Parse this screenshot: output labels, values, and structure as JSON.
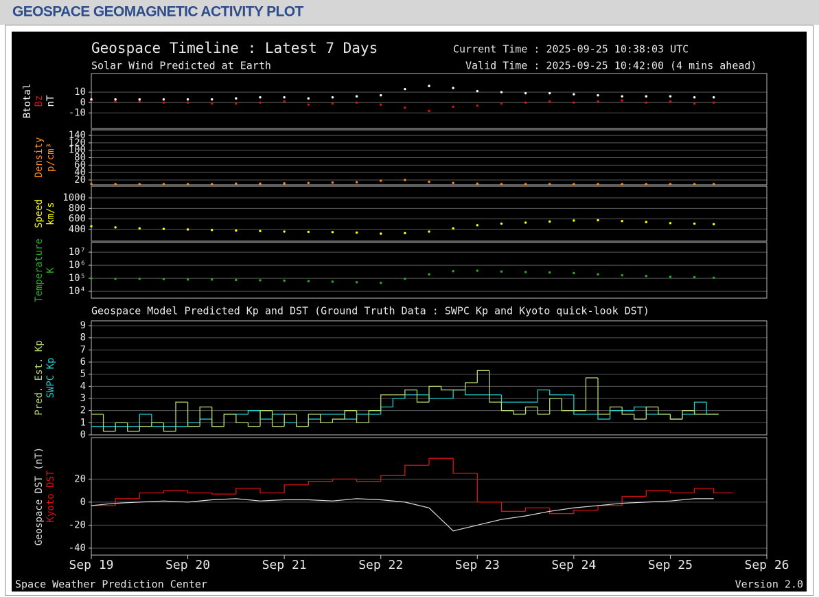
{
  "header": {
    "title": "GEOSPACE GEOMAGNETIC ACTIVITY PLOT"
  },
  "plot": {
    "title": "Geospace Timeline : Latest 7 Days",
    "current_time": "Current Time : 2025-09-25 10:38:03 UTC",
    "subtitle": "Solar Wind Predicted at Earth",
    "valid_time": "Valid Time : 2025-09-25 10:42:00 (4 mins ahead)",
    "model_title": "Geospace Model Predicted Kp and DST (Ground Truth Data : SWPC Kp and Kyoto quick-look DST)",
    "footer_left": "Space Weather Prediction Center",
    "footer_right": "Version 2.0"
  },
  "chart_data": [
    {
      "type": "scatter",
      "ylabel": "nT",
      "xlim": [
        0,
        7
      ],
      "ylim": [
        -25,
        28
      ],
      "yticks": [
        -10,
        0,
        10
      ],
      "grid": true,
      "x": [
        0,
        0.25,
        0.5,
        0.75,
        1,
        1.25,
        1.5,
        1.75,
        2,
        2.25,
        2.5,
        2.75,
        3,
        3.25,
        3.5,
        3.75,
        4,
        4.25,
        4.5,
        4.75,
        5,
        5.25,
        5.5,
        5.75,
        6,
        6.25,
        6.45
      ],
      "series": [
        {
          "name": "Btotal",
          "color": "#ffffff",
          "values": [
            3,
            3,
            3,
            3,
            3,
            3,
            4,
            5,
            5,
            4,
            5,
            6,
            7,
            13,
            16,
            14,
            11,
            10,
            9,
            9,
            8,
            7,
            6,
            6,
            6,
            5,
            5
          ]
        },
        {
          "name": "Bz",
          "color": "#e01010",
          "values": [
            2,
            1,
            1,
            0,
            0,
            -1,
            -1,
            0,
            1,
            -2,
            -1,
            0,
            -2,
            -5,
            -8,
            -4,
            -3,
            -1,
            0,
            1,
            0,
            1,
            2,
            0,
            1,
            -1,
            0
          ]
        }
      ]
    },
    {
      "type": "scatter",
      "ylabel": "p/cm³",
      "xlim": [
        0,
        7
      ],
      "ylim": [
        7,
        155
      ],
      "yticks": [
        20,
        40,
        60,
        80,
        100,
        120,
        140
      ],
      "grid": true,
      "x": [
        0,
        0.25,
        0.5,
        0.75,
        1,
        1.25,
        1.5,
        1.75,
        2,
        2.25,
        2.5,
        2.75,
        3,
        3.25,
        3.5,
        3.75,
        4,
        4.25,
        4.5,
        4.75,
        5,
        5.25,
        5.5,
        5.75,
        6,
        6.25,
        6.45
      ],
      "series": [
        {
          "name": "Density",
          "color": "#ff8c1a",
          "values": [
            9,
            9,
            9,
            9,
            9,
            9,
            10,
            10,
            11,
            12,
            13,
            14,
            18,
            20,
            15,
            12,
            10,
            9,
            9,
            9,
            9,
            9,
            9,
            9,
            9,
            9,
            9
          ]
        }
      ]
    },
    {
      "type": "scatter",
      "ylabel": "km/s",
      "xlim": [
        0,
        7
      ],
      "ylim": [
        178,
        1222
      ],
      "yticks": [
        400,
        600,
        800,
        1000
      ],
      "grid": true,
      "x": [
        0,
        0.25,
        0.5,
        0.75,
        1,
        1.25,
        1.5,
        1.75,
        2,
        2.25,
        2.5,
        2.75,
        3,
        3.25,
        3.5,
        3.75,
        4,
        4.25,
        4.5,
        4.75,
        5,
        5.25,
        5.5,
        5.75,
        6,
        6.25,
        6.45
      ],
      "series": [
        {
          "name": "Speed",
          "color": "#ffff00",
          "values": [
            460,
            440,
            420,
            410,
            400,
            390,
            380,
            370,
            360,
            355,
            350,
            340,
            320,
            330,
            360,
            420,
            480,
            510,
            530,
            550,
            570,
            575,
            560,
            540,
            520,
            510,
            500
          ]
        }
      ]
    },
    {
      "type": "scatter",
      "ylabel": "K",
      "yscale": "log",
      "xlim": [
        0,
        7
      ],
      "ylim": [
        3000,
        55000000
      ],
      "grid": true,
      "yticks": [
        {
          "value": 10000,
          "label": "10⁴"
        },
        {
          "value": 100000,
          "label": "10⁵"
        },
        {
          "value": 1000000,
          "label": "10⁶"
        },
        {
          "value": 10000000,
          "label": "10⁷"
        }
      ],
      "x": [
        0,
        0.25,
        0.5,
        0.75,
        1,
        1.25,
        1.5,
        1.75,
        2,
        2.25,
        2.5,
        2.75,
        3,
        3.25,
        3.5,
        3.75,
        4,
        4.25,
        4.5,
        4.75,
        5,
        5.25,
        5.5,
        5.75,
        6,
        6.25,
        6.45
      ],
      "series": [
        {
          "name": "Temperature",
          "color": "#22b022",
          "values": [
            100000,
            90000,
            90000,
            85000,
            80000,
            80000,
            75000,
            70000,
            65000,
            60000,
            55000,
            50000,
            45000,
            90000,
            200000,
            350000,
            380000,
            330000,
            300000,
            280000,
            250000,
            200000,
            170000,
            150000,
            130000,
            120000,
            110000
          ]
        }
      ]
    },
    {
      "type": "line",
      "xlim": [
        0,
        7
      ],
      "ylim": [
        0,
        9.4
      ],
      "yticks": [
        0,
        1,
        2,
        3,
        4,
        5,
        6,
        7,
        8,
        9
      ],
      "grid": true,
      "x": [
        0,
        0.125,
        0.25,
        0.375,
        0.5,
        0.625,
        0.75,
        0.875,
        1,
        1.125,
        1.25,
        1.375,
        1.5,
        1.625,
        1.75,
        1.875,
        2,
        2.125,
        2.25,
        2.375,
        2.5,
        2.625,
        2.75,
        2.875,
        3,
        3.125,
        3.25,
        3.375,
        3.5,
        3.625,
        3.75,
        3.875,
        4,
        4.125,
        4.25,
        4.375,
        4.5,
        4.625,
        4.75,
        4.875,
        5,
        5.125,
        5.25,
        5.375,
        5.5,
        5.625,
        5.75,
        5.875,
        6,
        6.125,
        6.25,
        6.375
      ],
      "series": [
        {
          "name": "Pred. Est. Kp",
          "color": "#b5d96e",
          "step": true,
          "values": [
            1.7,
            0.3,
            1.0,
            0.3,
            0.7,
            1.0,
            0.3,
            2.7,
            0.7,
            2.3,
            0.7,
            1.7,
            1.0,
            0.7,
            2.0,
            0.7,
            1.7,
            0.7,
            1.7,
            1.0,
            1.3,
            2.0,
            1.0,
            2.0,
            3.3,
            3.3,
            3.7,
            2.7,
            4.0,
            3.7,
            3.7,
            4.3,
            5.3,
            2.7,
            2.0,
            1.7,
            2.3,
            1.7,
            3.0,
            2.0,
            2.0,
            4.7,
            1.7,
            2.3,
            1.7,
            1.3,
            2.3,
            1.7,
            1.3,
            2.0,
            1.7,
            1.7
          ]
        },
        {
          "name": "SWPC Kp",
          "color": "#22cccc",
          "step": true,
          "values": [
            0.7,
            0.7,
            0.7,
            0.7,
            1.7,
            0.7,
            0.7,
            0.7,
            1.0,
            1.3,
            0.7,
            1.7,
            1.7,
            2.0,
            1.3,
            1.7,
            1.0,
            0.7,
            1.3,
            1.7,
            1.7,
            1.3,
            1.7,
            1.7,
            2.3,
            3.0,
            3.3,
            3.3,
            3.0,
            3.0,
            3.7,
            3.3,
            3.3,
            3.3,
            2.7,
            2.7,
            2.7,
            3.7,
            3.3,
            3.3,
            1.7,
            1.7,
            1.3,
            2.0,
            2.0,
            2.3,
            1.7,
            1.7,
            1.3,
            1.7,
            2.7,
            1.7
          ]
        }
      ]
    },
    {
      "type": "line",
      "xlim": [
        0,
        7
      ],
      "ylim": [
        -46,
        56
      ],
      "yticks": [
        -40,
        -20,
        0,
        20
      ],
      "grid": true,
      "xticks": [
        {
          "value": 0,
          "label": "Sep 19"
        },
        {
          "value": 1,
          "label": "Sep 20"
        },
        {
          "value": 2,
          "label": "Sep 21"
        },
        {
          "value": 3,
          "label": "Sep 22"
        },
        {
          "value": 4,
          "label": "Sep 23"
        },
        {
          "value": 5,
          "label": "Sep 24"
        },
        {
          "value": 6,
          "label": "Sep 25"
        },
        {
          "value": 7,
          "label": "Sep 26"
        }
      ],
      "x": [
        0,
        0.25,
        0.5,
        0.75,
        1,
        1.25,
        1.5,
        1.75,
        2,
        2.25,
        2.5,
        2.75,
        3,
        3.25,
        3.5,
        3.75,
        4,
        4.25,
        4.5,
        4.75,
        5,
        5.25,
        5.5,
        5.75,
        6,
        6.25,
        6.45
      ],
      "series": [
        {
          "name": "Geospace DST (nT)",
          "color": "#dddddd",
          "values": [
            -3,
            -1,
            0,
            1,
            0,
            2,
            3,
            1,
            2,
            2,
            1,
            3,
            2,
            0,
            -5,
            -25,
            -20,
            -15,
            -12,
            -8,
            -5,
            -3,
            -1,
            0,
            1,
            3,
            3
          ]
        },
        {
          "name": "Kyoto DST",
          "color": "#e01010",
          "step": true,
          "values": [
            -3,
            3,
            8,
            10,
            8,
            7,
            12,
            8,
            15,
            18,
            20,
            18,
            23,
            32,
            38,
            25,
            0,
            -8,
            -5,
            -10,
            -7,
            -3,
            5,
            10,
            8,
            12,
            8
          ]
        }
      ]
    }
  ]
}
